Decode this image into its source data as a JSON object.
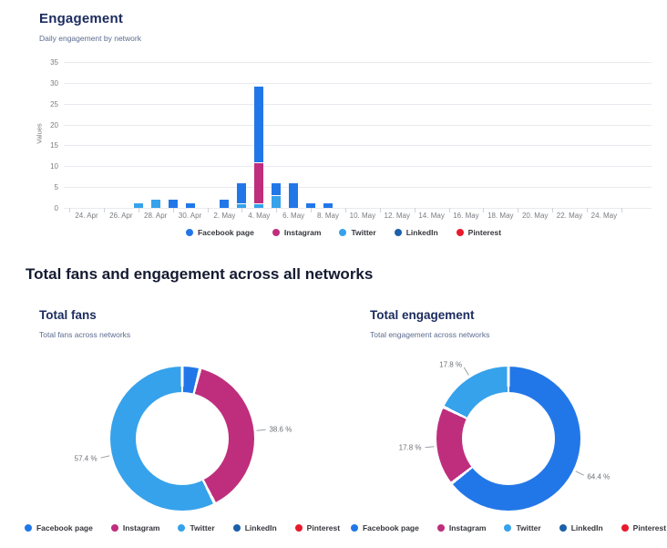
{
  "engagement": {
    "title": "Engagement",
    "subtitle": "Daily engagement by network"
  },
  "section_heading": "Total fans and engagement across all networks",
  "total_fans": {
    "title": "Total fans",
    "subtitle": "Total fans across networks"
  },
  "total_engagement": {
    "title": "Total engagement",
    "subtitle": "Total engagement across networks"
  },
  "networks": [
    {
      "name": "Facebook page",
      "color": "#2277e8"
    },
    {
      "name": "Instagram",
      "color": "#bf2e7d"
    },
    {
      "name": "Twitter",
      "color": "#36a2eb"
    },
    {
      "name": "LinkedIn",
      "color": "#1b61a9"
    },
    {
      "name": "Pinterest",
      "color": "#e8192c"
    }
  ],
  "chart_data": [
    {
      "id": "bar-chart",
      "type": "bar",
      "stacked": true,
      "title": "Engagement",
      "subtitle": "Daily engagement by network",
      "xlabel": "",
      "ylabel": "Values",
      "ylim": [
        0,
        35
      ],
      "yticks": [
        0,
        5,
        10,
        15,
        20,
        25,
        30,
        35
      ],
      "grid": true,
      "legend_position": "bottom",
      "x_axis_labels": [
        "24. Apr",
        "26. Apr",
        "28. Apr",
        "30. Apr",
        "2. May",
        "4. May",
        "6. May",
        "8. May",
        "10. May",
        "12. May",
        "14. May",
        "16. May",
        "18. May",
        "20. May",
        "22. May",
        "24. May"
      ],
      "bars": [
        {
          "date": "27. Apr",
          "day": 3,
          "segments": [
            {
              "network": "Twitter",
              "value": 1
            }
          ]
        },
        {
          "date": "28. Apr",
          "day": 4,
          "segments": [
            {
              "network": "Twitter",
              "value": 2
            }
          ]
        },
        {
          "date": "29. Apr",
          "day": 5,
          "segments": [
            {
              "network": "Facebook page",
              "value": 2
            }
          ]
        },
        {
          "date": "30. Apr",
          "day": 6,
          "segments": [
            {
              "network": "Facebook page",
              "value": 1
            }
          ]
        },
        {
          "date": "2. May",
          "day": 8,
          "segments": [
            {
              "network": "Facebook page",
              "value": 2
            }
          ]
        },
        {
          "date": "3. May",
          "day": 9,
          "segments": [
            {
              "network": "Twitter",
              "value": 1
            },
            {
              "network": "Facebook page",
              "value": 5
            }
          ]
        },
        {
          "date": "4. May",
          "day": 10,
          "segments": [
            {
              "network": "Twitter",
              "value": 1
            },
            {
              "network": "Instagram",
              "value": 10
            },
            {
              "network": "Facebook page",
              "value": 18
            }
          ]
        },
        {
          "date": "5. May",
          "day": 11,
          "segments": [
            {
              "network": "Twitter",
              "value": 3
            },
            {
              "network": "Facebook page",
              "value": 3
            }
          ]
        },
        {
          "date": "6. May",
          "day": 12,
          "segments": [
            {
              "network": "Facebook page",
              "value": 6
            }
          ]
        },
        {
          "date": "7. May",
          "day": 13,
          "segments": [
            {
              "network": "Facebook page",
              "value": 1
            }
          ]
        },
        {
          "date": "8. May",
          "day": 14,
          "segments": [
            {
              "network": "Facebook page",
              "value": 1
            }
          ]
        }
      ]
    },
    {
      "id": "donut-fans",
      "type": "pie",
      "title": "Total fans",
      "legend_position": "bottom",
      "slices": [
        {
          "network": "Facebook page",
          "pct": 4.0,
          "label": ""
        },
        {
          "network": "Instagram",
          "pct": 38.6,
          "label": "38.6 %"
        },
        {
          "network": "Twitter",
          "pct": 57.4,
          "label": "57.4 %"
        }
      ]
    },
    {
      "id": "donut-engagement",
      "type": "pie",
      "title": "Total engagement",
      "legend_position": "bottom",
      "slices": [
        {
          "network": "Facebook page",
          "pct": 64.4,
          "label": "64.4 %"
        },
        {
          "network": "Instagram",
          "pct": 17.8,
          "label": "17.8 %"
        },
        {
          "network": "Twitter",
          "pct": 17.8,
          "label": "17.8 %"
        }
      ]
    }
  ]
}
